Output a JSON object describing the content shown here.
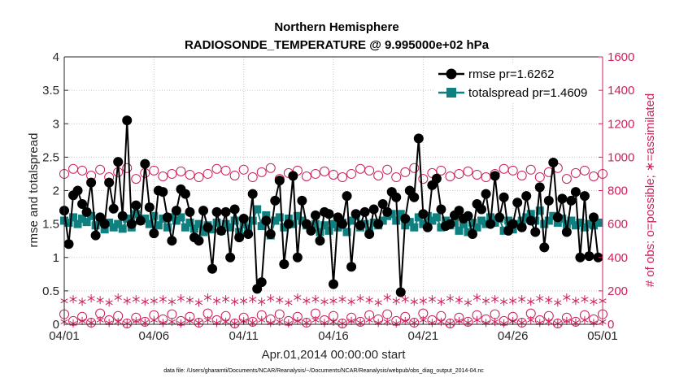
{
  "chart_data": {
    "type": "line",
    "title_line1": "Northern Hemisphere",
    "title_line2": "RADIOSONDE_TEMPERATURE @ 9.995000e+02 hPa",
    "xlabel": "Apr.01,2014 00:00:00 start",
    "ylabel_left": "rmse and totalspread",
    "ylabel_right": "# of obs: o=possible; ∗=assimilated",
    "x_ticks": [
      "04/01",
      "04/06",
      "04/11",
      "04/16",
      "04/21",
      "04/26",
      "05/01"
    ],
    "x_range_days": [
      0,
      30
    ],
    "y_left_ticks": [
      "0",
      "0.5",
      "1",
      "1.5",
      "2",
      "2.5",
      "3",
      "3.5",
      "4"
    ],
    "y_left_range": [
      0,
      4
    ],
    "y_right_ticks": [
      "0",
      "200",
      "400",
      "600",
      "800",
      "1000",
      "1200",
      "1400",
      "1600"
    ],
    "y_right_range": [
      0,
      1600
    ],
    "legend": [
      "rmse pr=1.6262",
      "totalspread pr=1.4609"
    ],
    "footnote": "data file: /Users/gharamti/Documents/NCAR/Reanalysis/~/Documents/NCAR/Reanalysis/webpub/obs_diag_output_2014-04.nc",
    "colors": {
      "rmse": "#000000",
      "totalspread": "#0f8080",
      "obs": "#cc1f5c"
    },
    "x_step_days": 0.25,
    "series": [
      {
        "name": "rmse",
        "values": [
          1.7,
          1.2,
          1.93,
          2.0,
          1.8,
          1.68,
          2.12,
          1.33,
          1.6,
          1.5,
          2.12,
          1.73,
          2.43,
          1.62,
          3.05,
          1.5,
          1.78,
          1.55,
          2.4,
          1.75,
          1.36,
          2.0,
          1.98,
          1.6,
          1.25,
          1.7,
          2.02,
          1.95,
          1.68,
          1.3,
          1.25,
          1.7,
          1.45,
          0.83,
          1.68,
          1.4,
          1.68,
          1.0,
          1.72,
          1.3,
          1.58,
          1.35,
          1.95,
          0.53,
          0.63,
          1.55,
          1.35,
          1.85,
          2.15,
          0.9,
          1.5,
          2.22,
          1.0,
          1.85,
          1.5,
          1.4,
          1.63,
          1.25,
          1.68,
          1.65,
          0.6,
          1.6,
          1.5,
          1.92,
          0.86,
          1.65,
          1.48,
          1.68,
          1.35,
          1.72,
          1.5,
          1.8,
          1.68,
          1.98,
          1.9,
          0.48,
          1.58,
          2.0,
          1.9,
          2.78,
          1.65,
          1.45,
          2.08,
          2.18,
          1.72,
          1.47,
          1.5,
          1.63,
          1.7,
          1.58,
          1.62,
          1.35,
          1.8,
          1.72,
          1.95,
          1.5,
          2.22,
          1.6,
          1.9,
          1.4,
          1.5,
          1.82,
          1.45,
          1.92,
          1.55,
          1.38,
          2.05,
          1.15,
          1.85,
          2.42,
          1.6,
          1.88,
          1.38,
          1.85,
          1.98,
          1.0,
          1.92,
          1.02,
          1.6,
          1.0
        ]
      },
      {
        "name": "totalspread",
        "values": [
          1.55,
          1.52,
          1.6,
          1.5,
          1.58,
          1.53,
          1.62,
          1.48,
          1.55,
          1.42,
          1.52,
          1.45,
          1.5,
          1.43,
          1.58,
          1.45,
          1.65,
          1.55,
          1.58,
          1.5,
          1.62,
          1.48,
          1.58,
          1.45,
          1.6,
          1.55,
          1.6,
          1.45,
          1.52,
          1.43,
          1.5,
          1.38,
          1.48,
          1.42,
          1.52,
          1.4,
          1.5,
          1.45,
          1.55,
          1.38,
          1.5,
          1.43,
          1.55,
          1.72,
          1.47,
          1.63,
          1.33,
          1.55,
          1.6,
          1.45,
          1.58,
          1.5,
          1.62,
          1.55,
          1.48,
          1.42,
          1.5,
          1.38,
          1.48,
          1.4,
          1.5,
          1.45,
          1.52,
          1.38,
          1.55,
          1.62,
          1.45,
          1.5,
          1.4,
          1.52,
          1.48,
          1.55,
          1.62,
          1.65,
          1.55,
          1.65,
          1.48,
          1.53,
          1.45,
          1.6,
          1.5,
          1.62,
          1.55,
          1.6,
          1.45,
          1.55,
          1.48,
          1.52,
          1.4,
          1.5,
          1.38,
          1.52,
          1.45,
          1.55,
          1.5,
          1.6,
          1.52,
          1.58,
          1.4,
          1.55,
          1.42,
          1.5,
          1.55,
          1.6,
          1.65,
          1.55,
          1.7,
          1.5,
          1.55,
          1.62,
          1.52,
          1.58,
          1.5,
          1.55,
          1.48,
          1.52,
          1.45,
          1.5,
          1.48,
          1.52
        ]
      },
      {
        "name": "obs_possible",
        "axis": "right",
        "pattern": [
          900,
          930,
          920,
          890,
          925,
          880,
          910,
          935,
          870,
          905,
          920,
          885,
          900,
          915,
          895,
          880
        ]
      },
      {
        "name": "obs_possible_low",
        "axis": "right",
        "pattern": [
          60,
          20,
          45,
          10,
          65,
          25,
          50,
          5,
          40,
          15,
          55,
          30
        ]
      },
      {
        "name": "obs_assimilated",
        "axis": "right",
        "pattern": [
          140,
          150,
          135,
          155,
          145,
          130,
          160,
          140,
          150,
          135
        ]
      },
      {
        "name": "obs_assimilated_low",
        "axis": "right",
        "pattern": [
          15,
          5,
          20,
          10,
          25,
          8
        ]
      }
    ]
  }
}
